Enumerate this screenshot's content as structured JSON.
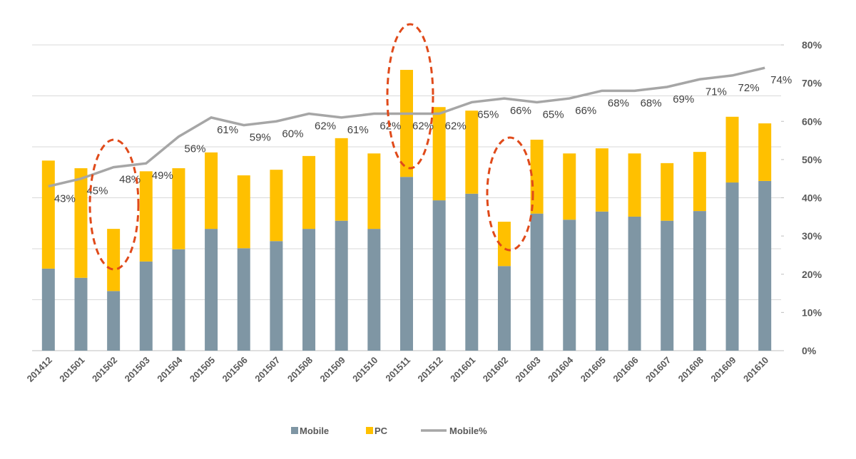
{
  "chart_data": {
    "type": "bar",
    "categories": [
      "201412",
      "201501",
      "201502",
      "201503",
      "201504",
      "201505",
      "201506",
      "201507",
      "201508",
      "201509",
      "201510",
      "201511",
      "201512",
      "201601",
      "201602",
      "201603",
      "201604",
      "201605",
      "201606",
      "201607",
      "201608",
      "201609",
      "201610"
    ],
    "stacked": true,
    "ylim": [
      0,
      60
    ],
    "yticks": [
      0,
      10,
      20,
      30,
      40,
      50,
      60
    ],
    "grid": true,
    "y2lim": [
      0,
      80
    ],
    "y2ticks": [
      {
        "value": 0,
        "label": "0%"
      },
      {
        "value": 10,
        "label": "10%"
      },
      {
        "value": 20,
        "label": "20%"
      },
      {
        "value": 30,
        "label": "30%"
      },
      {
        "value": 40,
        "label": "40%"
      },
      {
        "value": 50,
        "label": "50%"
      },
      {
        "value": 60,
        "label": "60%"
      },
      {
        "value": 70,
        "label": "70%"
      },
      {
        "value": 80,
        "label": "80%"
      }
    ],
    "series": [
      {
        "name": "Mobile",
        "type": "bar",
        "color": "#7f96a4",
        "values": [
          16.1,
          14.3,
          11.7,
          17.5,
          19.9,
          23.9,
          20.1,
          21.5,
          23.9,
          25.5,
          23.9,
          34.1,
          29.5,
          30.8,
          16.6,
          26.9,
          25.7,
          27.3,
          26.3,
          25.5,
          27.4,
          33.0,
          33.3
        ]
      },
      {
        "name": "PC",
        "type": "bar",
        "color": "#ffc000",
        "values": [
          21.2,
          21.5,
          12.2,
          17.7,
          15.9,
          15.0,
          14.3,
          14.0,
          14.3,
          16.2,
          14.8,
          21.0,
          18.3,
          16.3,
          8.7,
          14.5,
          13.0,
          12.4,
          12.4,
          11.3,
          11.6,
          12.9,
          11.3
        ]
      },
      {
        "name": "Mobile%",
        "type": "line",
        "axis": "y2",
        "color": "#a6a6a6",
        "values": [
          43,
          45,
          48,
          49,
          56,
          61,
          59,
          60,
          62,
          61,
          62,
          62,
          62,
          65,
          66,
          65,
          66,
          68,
          68,
          69,
          71,
          72,
          74
        ],
        "value_labels": [
          "43%",
          "45%",
          "48%",
          "49%",
          "56%",
          "61%",
          "59%",
          "60%",
          "62%",
          "61%",
          "62%",
          "62%",
          "62%",
          "65%",
          "66%",
          "65%",
          "66%",
          "68%",
          "68%",
          "69%",
          "71%",
          "72%",
          "74%"
        ]
      }
    ]
  }
}
